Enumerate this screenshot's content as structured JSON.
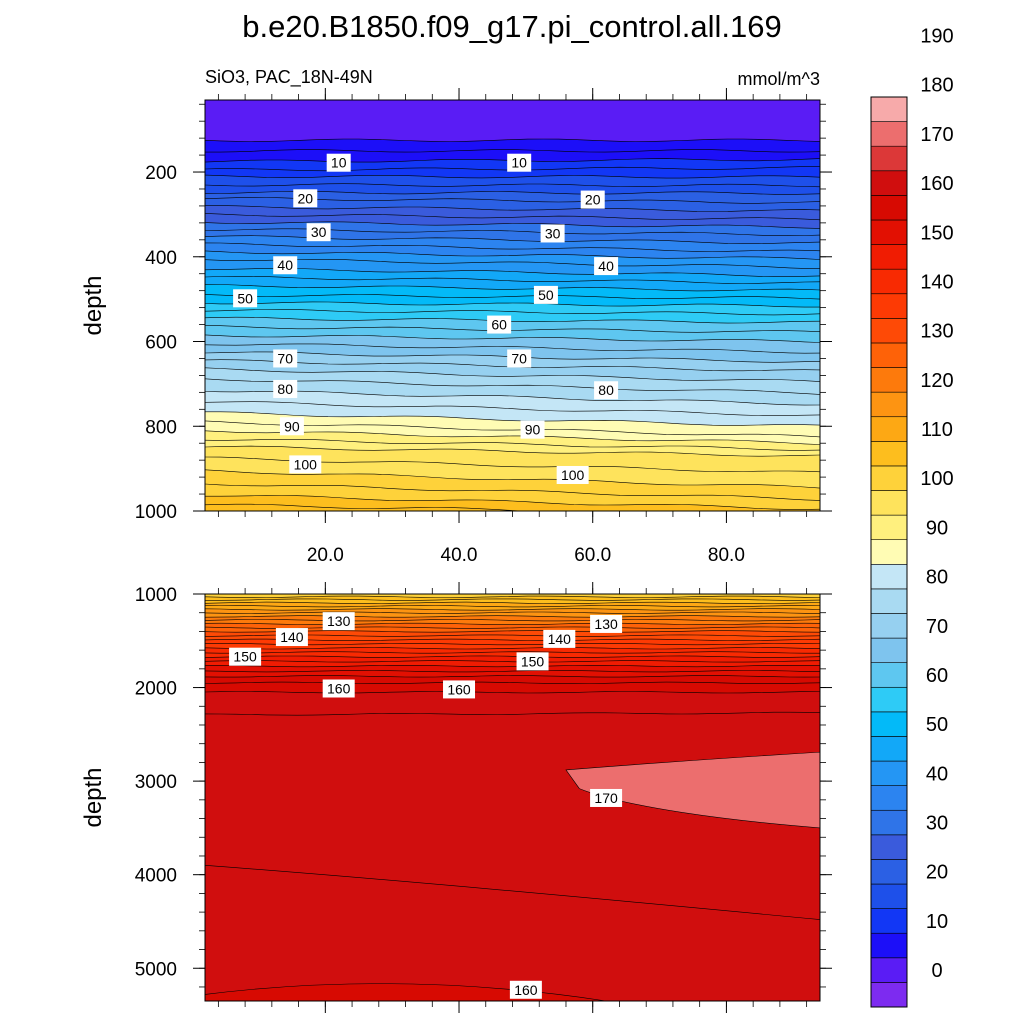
{
  "chart_data": {
    "type": "contour",
    "title": "b.e20.B1850.f09_g17.pi_control.all.169",
    "subtitle_left": "SiO3, PAC_18N-49N",
    "subtitle_right": "mmol/m^3",
    "colorbar": {
      "levels": [
        0,
        10,
        20,
        30,
        40,
        50,
        60,
        70,
        80,
        90,
        100,
        110,
        120,
        130,
        140,
        150,
        160,
        170,
        180,
        190
      ],
      "colors": [
        "#7d2bf0",
        "#5a1cf5",
        "#1c0ff8",
        "#1237f5",
        "#1e50ea",
        "#2b60e4",
        "#3a5bdc",
        "#2f74e8",
        "#2c84f0",
        "#2496f4",
        "#12a8f8",
        "#03baf8",
        "#2ecbf6",
        "#5ec7f0",
        "#7ec4ee",
        "#96d0f0",
        "#a9daf2",
        "#c4e6f6",
        "#fffcb4",
        "#fff07e",
        "#fee35c",
        "#fed23a",
        "#fdbe1e",
        "#fda814",
        "#fd9412",
        "#fd7a0c",
        "#fe6208",
        "#fe4a06",
        "#fd3a04",
        "#f82a02",
        "#f01c02",
        "#e21002",
        "#d70a02",
        "#d00e0e",
        "#dc3838",
        "#ec6e6e",
        "#f7aaaa"
      ]
    },
    "panels": [
      {
        "name": "upper",
        "xlim": [
          2,
          94
        ],
        "ylim": [
          1000,
          30
        ],
        "ylabel": "depth",
        "xticks": [
          20.0,
          40.0,
          60.0,
          80.0
        ],
        "xtick_labels": [
          "20.0",
          "40.0",
          "60.0",
          "80.0"
        ],
        "yticks": [
          200,
          400,
          600,
          800,
          1000
        ],
        "ytick_labels": [
          "200",
          "400",
          "600",
          "800",
          "1000"
        ],
        "contour_levels": [
          2.5,
          5,
          7.5,
          10,
          12.5,
          15,
          17.5,
          20,
          22.5,
          25,
          27.5,
          30,
          32.5,
          35,
          37.5,
          40,
          42.5,
          45,
          47.5,
          50,
          52.5,
          55,
          57.5,
          60,
          62.5,
          65,
          67.5,
          70,
          72.5,
          75,
          77.5,
          80,
          82.5,
          85,
          87.5,
          90,
          92.5,
          95,
          97.5,
          100,
          102.5,
          105
        ],
        "contour_depth_left": [
          125,
          150,
          175,
          195,
          210,
          230,
          248,
          262,
          282,
          300,
          318,
          335,
          352,
          370,
          388,
          405,
          428,
          448,
          468,
          490,
          508,
          526,
          545,
          565,
          585,
          605,
          625,
          645,
          665,
          688,
          715,
          742,
          768,
          790,
          810,
          830,
          848,
          875,
          905,
          935,
          962,
          985
        ],
        "contour_depth_right": [
          125,
          150,
          170,
          190,
          212,
          232,
          250,
          272,
          292,
          312,
          330,
          348,
          368,
          388,
          405,
          425,
          445,
          462,
          480,
          498,
          516,
          535,
          555,
          578,
          600,
          625,
          648,
          670,
          695,
          722,
          748,
          775,
          800,
          825,
          840,
          855,
          870,
          910,
          945,
          972,
          995,
          1010
        ],
        "labels": [
          {
            "text": "10",
            "x": 22,
            "depth": 178
          },
          {
            "text": "10",
            "x": 49,
            "depth": 178
          },
          {
            "text": "20",
            "x": 17,
            "depth": 262
          },
          {
            "text": "20",
            "x": 60,
            "depth": 265
          },
          {
            "text": "30",
            "x": 19,
            "depth": 342
          },
          {
            "text": "30",
            "x": 54,
            "depth": 345
          },
          {
            "text": "40",
            "x": 14,
            "depth": 420
          },
          {
            "text": "40",
            "x": 62,
            "depth": 422
          },
          {
            "text": "50",
            "x": 8,
            "depth": 498
          },
          {
            "text": "50",
            "x": 53,
            "depth": 490
          },
          {
            "text": "60",
            "x": 46,
            "depth": 560
          },
          {
            "text": "70",
            "x": 14,
            "depth": 640
          },
          {
            "text": "70",
            "x": 49,
            "depth": 640
          },
          {
            "text": "80",
            "x": 14,
            "depth": 712
          },
          {
            "text": "80",
            "x": 62,
            "depth": 715
          },
          {
            "text": "90",
            "x": 15,
            "depth": 800
          },
          {
            "text": "90",
            "x": 51,
            "depth": 808
          },
          {
            "text": "100",
            "x": 17,
            "depth": 890
          },
          {
            "text": "100",
            "x": 57,
            "depth": 915
          }
        ]
      },
      {
        "name": "lower",
        "xlim": [
          2,
          94
        ],
        "ylim": [
          5350,
          1000
        ],
        "ylabel": "depth",
        "yticks": [
          1000,
          2000,
          3000,
          4000,
          5000
        ],
        "ytick_labels": [
          "1000",
          "2000",
          "3000",
          "4000",
          "5000"
        ],
        "contour_levels": [
          102.5,
          105,
          107.5,
          110,
          112.5,
          115,
          117.5,
          120,
          122.5,
          125,
          127.5,
          130,
          132.5,
          135,
          137.5,
          140,
          142.5,
          145,
          147.5,
          150,
          152.5,
          155,
          157.5,
          160
        ],
        "contour_depth_left": [
          1030,
          1060,
          1095,
          1130,
          1165,
          1200,
          1240,
          1280,
          1320,
          1360,
          1400,
          1445,
          1490,
          1535,
          1580,
          1625,
          1670,
          1720,
          1770,
          1825,
          1880,
          1950,
          2050,
          2290
        ],
        "contour_depth_right": [
          1030,
          1060,
          1095,
          1130,
          1165,
          1200,
          1240,
          1280,
          1320,
          1360,
          1400,
          1445,
          1490,
          1535,
          1580,
          1625,
          1670,
          1720,
          1770,
          1825,
          1880,
          1950,
          2050,
          2270
        ],
        "labels": [
          {
            "text": "130",
            "x": 22,
            "depth": 1290
          },
          {
            "text": "130",
            "x": 62,
            "depth": 1320
          },
          {
            "text": "140",
            "x": 15,
            "depth": 1460
          },
          {
            "text": "140",
            "x": 55,
            "depth": 1480
          },
          {
            "text": "150",
            "x": 8,
            "depth": 1670
          },
          {
            "text": "150",
            "x": 51,
            "depth": 1720
          },
          {
            "text": "160",
            "x": 22,
            "depth": 2010
          },
          {
            "text": "160",
            "x": 40,
            "depth": 2020
          },
          {
            "text": "170",
            "x": 62,
            "depth": 3180
          },
          {
            "text": "160",
            "x": 50,
            "depth": 5230
          }
        ]
      }
    ]
  }
}
